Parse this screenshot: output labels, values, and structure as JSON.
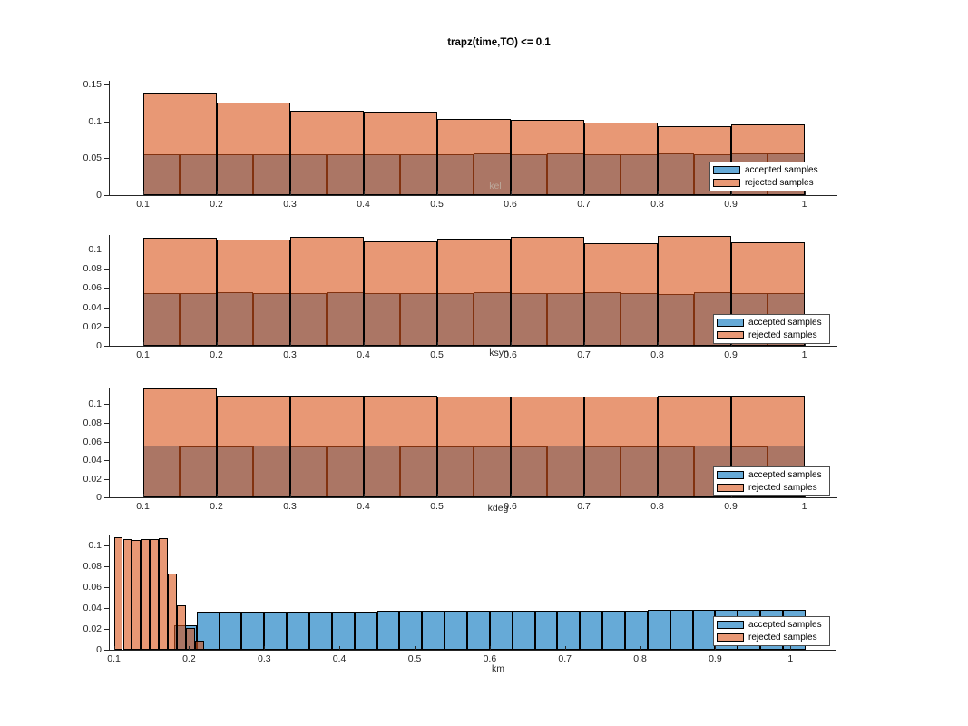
{
  "figure": {
    "title": "trapz(time,TO) <= 0.1"
  },
  "legend": {
    "entries": [
      {
        "key": "accepted",
        "label": "accepted samples",
        "swatch_color": "#66AAD7"
      },
      {
        "key": "rejected",
        "label": "rejected samples",
        "swatch_color": "#E89875"
      }
    ],
    "position": "inside-right"
  },
  "colors": {
    "accepted_face": "rgba(0,114,189,0.6)",
    "rejected_face": "rgba(217,83,25,0.6)",
    "bar_edge": "#000000",
    "axis": "#262626",
    "tick_text": "#262626",
    "kel_label_text": "#BCA89B",
    "xlabel_text": "#262626"
  },
  "chart_data": [
    {
      "type": "bar",
      "subtype": "overlaid-histograms",
      "xlabel": "kel",
      "xlim": [
        0.055,
        1.045
      ],
      "ylim": [
        0,
        0.155
      ],
      "grid": false,
      "xticks": [
        0.1,
        0.2,
        0.3,
        0.4,
        0.5,
        0.6,
        0.7,
        0.8,
        0.9,
        1
      ],
      "xtick_labels": [
        "0.1",
        "0.2",
        "0.3",
        "0.4",
        "0.5",
        "0.6",
        "0.7",
        "0.8",
        "0.9",
        "1"
      ],
      "yticks": [
        0,
        0.05,
        0.1,
        0.15
      ],
      "ytick_labels": [
        "0",
        "0.05",
        "0.1",
        "0.15"
      ],
      "series": [
        {
          "name": "accepted samples",
          "bin_start": 0.1,
          "bin_width": 0.05,
          "heights": [
            0.0553,
            0.0553,
            0.0555,
            0.0554,
            0.0553,
            0.0554,
            0.0555,
            0.0553,
            0.0554,
            0.057,
            0.0555,
            0.0563,
            0.0556,
            0.0556,
            0.0566,
            0.0557,
            0.0562,
            0.0566
          ]
        },
        {
          "name": "rejected samples",
          "bin_start": 0.1,
          "bin_width": 0.1,
          "heights": [
            0.1378,
            0.1255,
            0.1144,
            0.1132,
            0.1033,
            0.1021,
            0.0988,
            0.0935,
            0.0956
          ]
        }
      ]
    },
    {
      "type": "bar",
      "subtype": "overlaid-histograms",
      "xlabel": "ksyn",
      "xlim": [
        0.055,
        1.045
      ],
      "ylim": [
        0,
        0.115
      ],
      "grid": false,
      "xticks": [
        0.1,
        0.2,
        0.3,
        0.4,
        0.5,
        0.6,
        0.7,
        0.8,
        0.9,
        1
      ],
      "xtick_labels": [
        "0.1",
        "0.2",
        "0.3",
        "0.4",
        "0.5",
        "0.6",
        "0.7",
        "0.8",
        "0.9",
        "1"
      ],
      "yticks": [
        0,
        0.02,
        0.04,
        0.06,
        0.08,
        0.1
      ],
      "ytick_labels": [
        "0",
        "0.02",
        "0.04",
        "0.06",
        "0.08",
        "0.1"
      ],
      "series": [
        {
          "name": "accepted samples",
          "bin_start": 0.1,
          "bin_width": 0.05,
          "heights": [
            0.0551,
            0.055,
            0.0552,
            0.0551,
            0.055,
            0.0552,
            0.0551,
            0.055,
            0.0551,
            0.0552,
            0.055,
            0.0551,
            0.0552,
            0.055,
            0.0541,
            0.0558,
            0.0551,
            0.055
          ]
        },
        {
          "name": "rejected samples",
          "bin_start": 0.1,
          "bin_width": 0.1,
          "heights": [
            0.1123,
            0.1104,
            0.1132,
            0.1085,
            0.1113,
            0.1132,
            0.1066,
            0.1142,
            0.1075
          ]
        }
      ]
    },
    {
      "type": "bar",
      "subtype": "overlaid-histograms",
      "xlabel": "kdeg",
      "xlim": [
        0.055,
        1.045
      ],
      "ylim": [
        0,
        0.117
      ],
      "grid": false,
      "xticks": [
        0.1,
        0.2,
        0.3,
        0.4,
        0.5,
        0.6,
        0.7,
        0.8,
        0.9,
        1
      ],
      "xtick_labels": [
        "0.1",
        "0.2",
        "0.3",
        "0.4",
        "0.5",
        "0.6",
        "0.7",
        "0.8",
        "0.9",
        "1"
      ],
      "yticks": [
        0,
        0.02,
        0.04,
        0.06,
        0.08,
        0.1
      ],
      "ytick_labels": [
        "0",
        "0.02",
        "0.04",
        "0.06",
        "0.08",
        "0.1"
      ],
      "series": [
        {
          "name": "accepted samples",
          "bin_start": 0.1,
          "bin_width": 0.05,
          "heights": [
            0.0558,
            0.055,
            0.0551,
            0.0552,
            0.0551,
            0.055,
            0.0552,
            0.0551,
            0.055,
            0.0551,
            0.055,
            0.0552,
            0.0551,
            0.055,
            0.0551,
            0.0552,
            0.055,
            0.0556
          ]
        },
        {
          "name": "rejected samples",
          "bin_start": 0.1,
          "bin_width": 0.1,
          "heights": [
            0.1166,
            0.1097,
            0.1097,
            0.1096,
            0.1079,
            0.1078,
            0.1078,
            0.1097,
            0.1096
          ]
        }
      ]
    },
    {
      "type": "bar",
      "subtype": "overlaid-histograms",
      "xlabel": "km",
      "xlim": [
        0.0945,
        1.06
      ],
      "ylim": [
        0,
        0.11
      ],
      "grid": false,
      "xticks": [
        0.1,
        0.2,
        0.3,
        0.4,
        0.5,
        0.6,
        0.7,
        0.8,
        0.9,
        1
      ],
      "xtick_labels": [
        "0.1",
        "0.2",
        "0.3",
        "0.4",
        "0.5",
        "0.6",
        "0.7",
        "0.8",
        "0.9",
        "1"
      ],
      "yticks": [
        0,
        0.02,
        0.04,
        0.06,
        0.08,
        0.1
      ],
      "ytick_labels": [
        "0",
        "0.02",
        "0.04",
        "0.06",
        "0.08",
        "0.1"
      ],
      "series": [
        {
          "name": "accepted samples",
          "bin_start": 0.18,
          "bin_width": 0.03,
          "heights": [
            0.023,
            0.0362,
            0.0366,
            0.0366,
            0.0366,
            0.0366,
            0.0366,
            0.0366,
            0.0366,
            0.037,
            0.037,
            0.037,
            0.037,
            0.037,
            0.037,
            0.037,
            0.0375,
            0.0375,
            0.0375,
            0.0375,
            0.0375,
            0.0385,
            0.0385,
            0.0385,
            0.0385,
            0.0385,
            0.0385,
            0.0385
          ]
        },
        {
          "name": "rejected samples",
          "bin_start": 0.1,
          "bin_width": 0.012,
          "heights": [
            0.1073,
            0.1054,
            0.1049,
            0.1056,
            0.1053,
            0.1068,
            0.0724,
            0.0421,
            0.0209,
            0.0086
          ]
        }
      ]
    }
  ]
}
